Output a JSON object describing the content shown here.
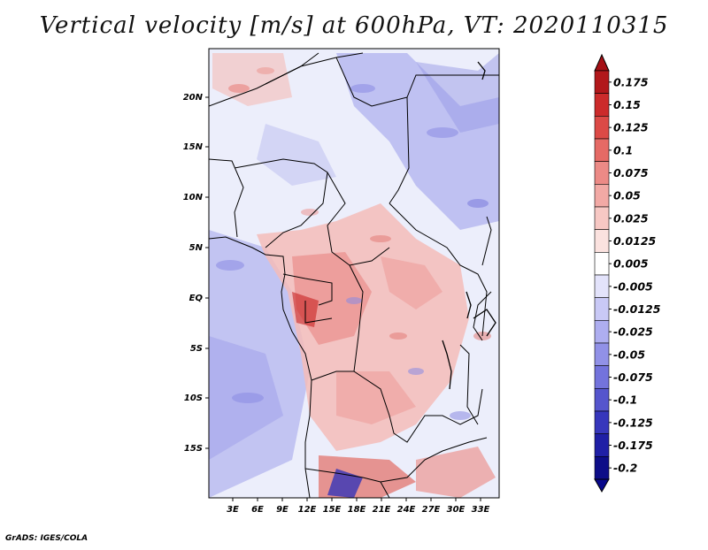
{
  "title": "Vertical velocity [m/s] at 600hPa, VT: 2020110315",
  "credit": "GrADS: IGES/COLA",
  "map": {
    "lat_ticks": [
      "20N",
      "15N",
      "10N",
      "5N",
      "EQ",
      "5S",
      "10S",
      "15S"
    ],
    "lon_ticks": [
      "3E",
      "6E",
      "9E",
      "12E",
      "15E",
      "18E",
      "21E",
      "24E",
      "27E",
      "30E",
      "33E"
    ]
  },
  "colorbar": {
    "labels": [
      "0.175",
      "0.15",
      "0.125",
      "0.1",
      "0.075",
      "0.05",
      "0.025",
      "0.0125",
      "0.005",
      "-0.005",
      "-0.0125",
      "-0.025",
      "-0.05",
      "-0.075",
      "-0.1",
      "-0.125",
      "-0.175",
      "-0.2"
    ],
    "colors": [
      "#b2181b",
      "#cc2b2b",
      "#dc4a46",
      "#e56a65",
      "#ec8a86",
      "#f2a9a5",
      "#f7c8c4",
      "#fbe2df",
      "#ffffff",
      "#e3e3fb",
      "#c9c9f6",
      "#aeaef0",
      "#9191e7",
      "#7373dc",
      "#5555cd",
      "#3737bc",
      "#1f1fa6",
      "#0d0d88"
    ],
    "color_high": "#a50f15",
    "color_low": "#08088c"
  }
}
